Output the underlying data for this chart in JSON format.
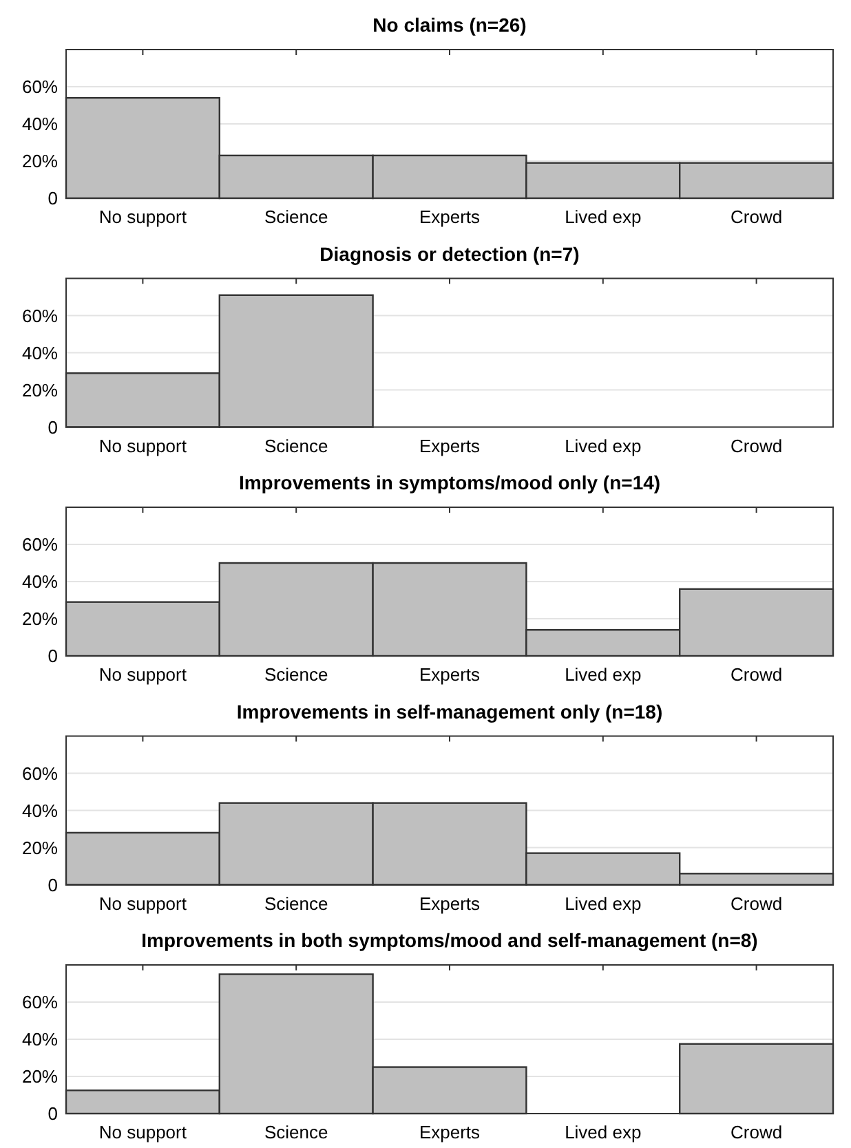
{
  "chart_data": [
    {
      "type": "bar",
      "title": "No claims (n=26)",
      "categories": [
        "No support",
        "Science",
        "Experts",
        "Lived exp",
        "Crowd"
      ],
      "values": [
        54,
        23,
        23,
        19,
        19
      ],
      "color": "#bfbfbf",
      "ylim": [
        0,
        80
      ],
      "yticks": [
        {
          "value": 0,
          "label": "0"
        },
        {
          "value": 20,
          "label": "20%"
        },
        {
          "value": 40,
          "label": "40%"
        },
        {
          "value": 60,
          "label": "60%"
        }
      ],
      "grid": "y"
    },
    {
      "type": "bar",
      "title": "Diagnosis or detection (n=7)",
      "categories": [
        "No support",
        "Science",
        "Experts",
        "Lived exp",
        "Crowd"
      ],
      "values": [
        29,
        71,
        0,
        0,
        0
      ],
      "color": "#bfbfbf",
      "ylim": [
        0,
        80
      ],
      "yticks": [
        {
          "value": 0,
          "label": "0"
        },
        {
          "value": 20,
          "label": "20%"
        },
        {
          "value": 40,
          "label": "40%"
        },
        {
          "value": 60,
          "label": "60%"
        }
      ],
      "grid": "y"
    },
    {
      "type": "bar",
      "title": "Improvements in symptoms/mood only (n=14)",
      "categories": [
        "No support",
        "Science",
        "Experts",
        "Lived exp",
        "Crowd"
      ],
      "values": [
        29,
        50,
        50,
        14,
        36
      ],
      "color": "#bfbfbf",
      "ylim": [
        0,
        80
      ],
      "yticks": [
        {
          "value": 0,
          "label": "0"
        },
        {
          "value": 20,
          "label": "20%"
        },
        {
          "value": 40,
          "label": "40%"
        },
        {
          "value": 60,
          "label": "60%"
        }
      ],
      "grid": "y"
    },
    {
      "type": "bar",
      "title": "Improvements in self-management only (n=18)",
      "categories": [
        "No support",
        "Science",
        "Experts",
        "Lived exp",
        "Crowd"
      ],
      "values": [
        28,
        44,
        44,
        17,
        6
      ],
      "color": "#bfbfbf",
      "ylim": [
        0,
        80
      ],
      "yticks": [
        {
          "value": 0,
          "label": "0"
        },
        {
          "value": 20,
          "label": "20%"
        },
        {
          "value": 40,
          "label": "40%"
        },
        {
          "value": 60,
          "label": "60%"
        }
      ],
      "grid": "y"
    },
    {
      "type": "bar",
      "title": "Improvements in both symptoms/mood and self-management (n=8)",
      "categories": [
        "No support",
        "Science",
        "Experts",
        "Lived exp",
        "Crowd"
      ],
      "values": [
        12.5,
        75,
        25,
        0,
        37.5
      ],
      "color": "#bfbfbf",
      "ylim": [
        0,
        80
      ],
      "yticks": [
        {
          "value": 0,
          "label": "0"
        },
        {
          "value": 20,
          "label": "20%"
        },
        {
          "value": 40,
          "label": "40%"
        },
        {
          "value": 60,
          "label": "60%"
        }
      ],
      "grid": "y"
    }
  ]
}
